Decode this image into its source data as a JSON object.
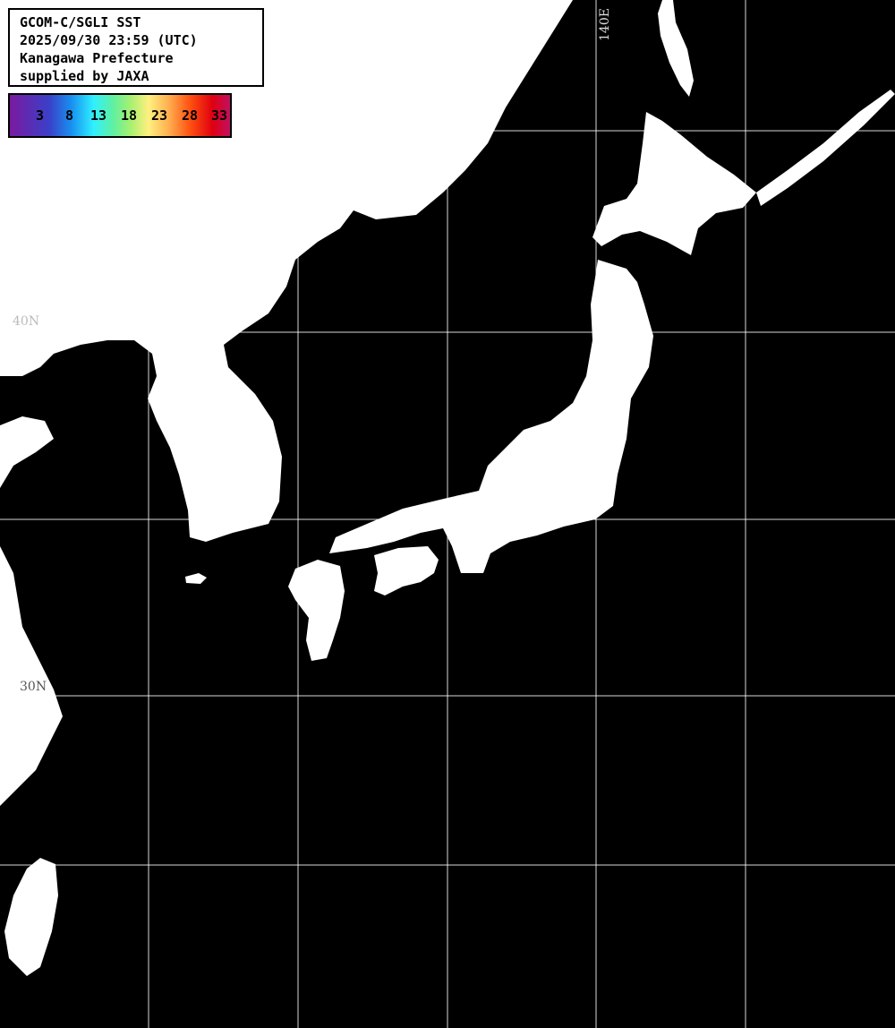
{
  "info": {
    "line1": "GCOM-C/SGLI SST",
    "line2": "2025/09/30 23:59 (UTC)",
    "line3": "Kanagawa Prefecture",
    "line4": "supplied by JAXA"
  },
  "colorbar": {
    "ticks": [
      "3",
      "8",
      "13",
      "18",
      "23",
      "28",
      "33"
    ],
    "colors": [
      "#7a1aa0",
      "#3a40c8",
      "#1890f0",
      "#30f0ff",
      "#60f0a0",
      "#a8f070",
      "#fff080",
      "#ffb050",
      "#ff5010",
      "#e00010",
      "#c01060"
    ]
  },
  "grid_labels": {
    "lon_140": "140E",
    "lat_40": "40N",
    "lat_30": "30N"
  },
  "colors": {
    "land": "#ffffff",
    "sea": "#000000",
    "grid": "#ffffff"
  }
}
